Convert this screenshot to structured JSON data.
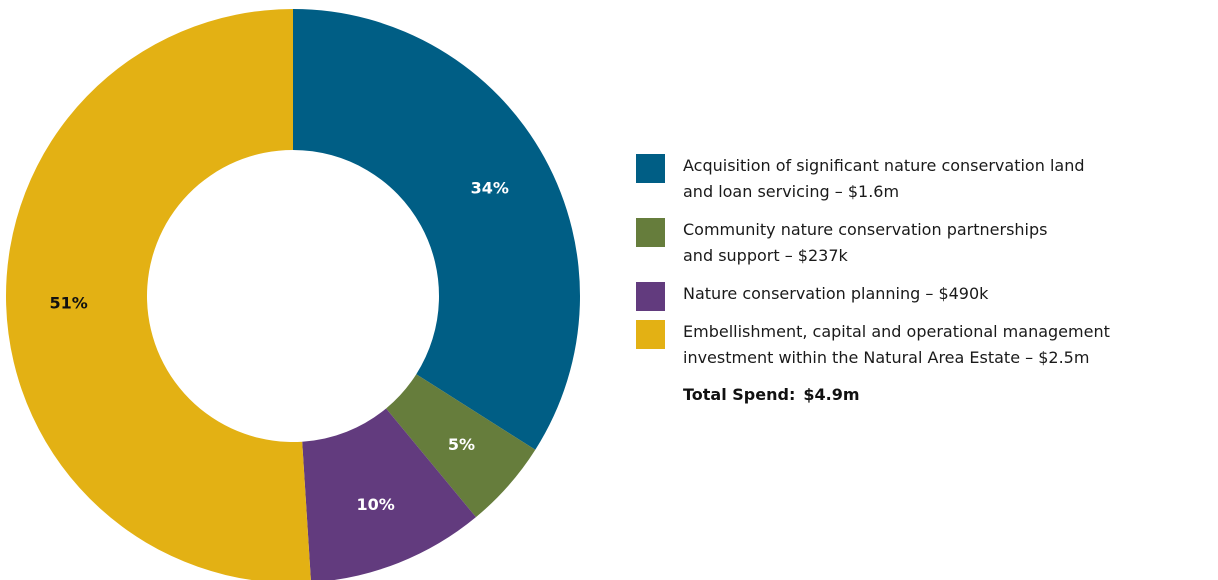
{
  "chart_data": {
    "type": "pie",
    "donut": true,
    "slices": [
      {
        "label": "Acquisition of significant nature conservation land\nand loan servicing – $1.6m",
        "value": 34,
        "value_label": "34%",
        "color": "#005E85",
        "label_color": "#ffffff"
      },
      {
        "label": "Community nature conservation partnerships\nand support – $237k",
        "value": 5,
        "value_label": "5%",
        "color": "#667D3C",
        "label_color": "#ffffff"
      },
      {
        "label": "Nature conservation planning – $490k",
        "value": 10,
        "value_label": "10%",
        "color": "#623B7E",
        "label_color": "#ffffff"
      },
      {
        "label": "Embellishment, capital and operational management\ninvestment within the Natural Area Estate – $2.5m",
        "value": 51,
        "value_label": "51%",
        "color": "#E3B114",
        "label_color": "#111111"
      }
    ],
    "start_angle_deg": 0,
    "direction": "clockwise",
    "legend_position": "right"
  },
  "total": {
    "label": "Total Spend:",
    "value": "$4.9m"
  }
}
